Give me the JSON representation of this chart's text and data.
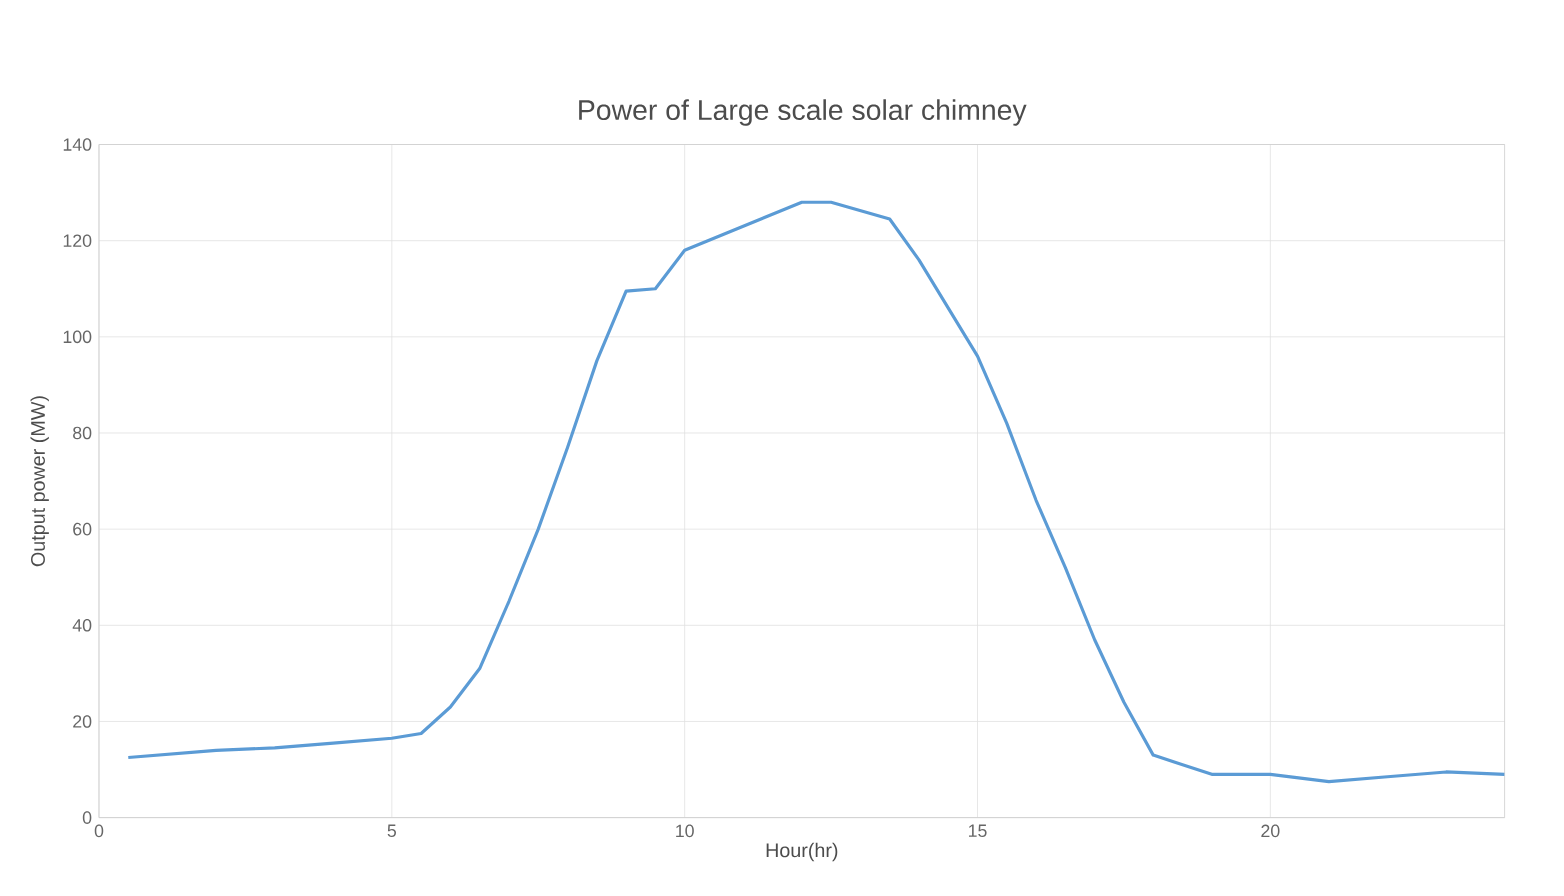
{
  "chart_data": {
    "type": "line",
    "title": "Power of Large scale solar chimney",
    "xlabel": "Hour(hr)",
    "ylabel": "Output power (MW)",
    "xlim": [
      0,
      24
    ],
    "xticks": [
      0,
      5,
      10,
      15,
      20
    ],
    "ylim": [
      0,
      140
    ],
    "yticks": [
      0,
      20,
      40,
      60,
      80,
      100,
      120,
      140
    ],
    "grid": true,
    "series": [
      {
        "color": "#5b9bd5",
        "x": [
          0.5,
          2,
          3,
          4,
          5,
          5.5,
          6,
          6.5,
          7,
          7.5,
          8,
          8.5,
          9,
          9.5,
          10,
          11,
          12,
          12.5,
          13.5,
          14,
          15,
          15.5,
          16,
          16.5,
          17,
          17.5,
          18,
          19,
          20,
          21,
          22,
          23,
          24
        ],
        "values": [
          12.5,
          14,
          14.5,
          15.5,
          16.5,
          17.5,
          23,
          31,
          45,
          60,
          77,
          95,
          109.5,
          110,
          118,
          123,
          128,
          128,
          124.5,
          116,
          96,
          82,
          66,
          52,
          37,
          24,
          13,
          9,
          9,
          7.5,
          8.5,
          9.5,
          9
        ]
      }
    ]
  }
}
